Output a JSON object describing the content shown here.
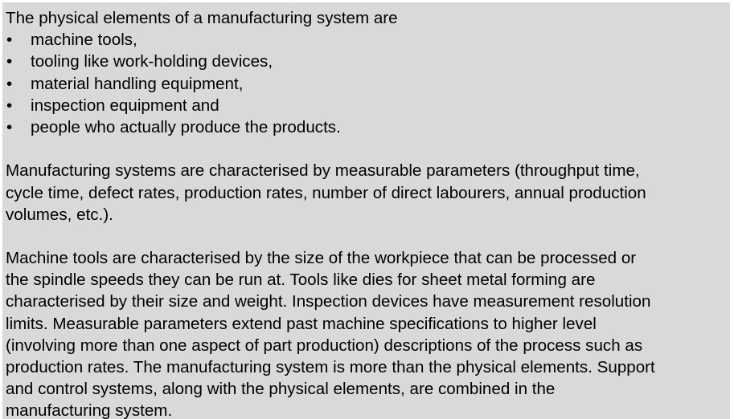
{
  "document": {
    "intro": "The physical elements of a manufacturing system are",
    "bullet_glyph": "•",
    "bullets": [
      "machine tools,",
      "tooling like work-holding devices,",
      "material handling equipment,",
      "inspection equipment and",
      "people who actually produce the products."
    ],
    "paragraph1_lines": [
      "Manufacturing systems are characterised by measurable parameters (throughput time,",
      "cycle time, defect rates, production rates, number of direct labourers, annual production",
      "volumes, etc.)."
    ],
    "paragraph2_lines": [
      "Machine tools are characterised by the size of the workpiece that can be processed or",
      "the spindle speeds they can be run at. Tools like dies for sheet metal forming are",
      "characterised by their size and weight.  Inspection devices have measurement resolution",
      "limits.  Measurable parameters extend past machine specifications to higher level",
      "(involving more than one aspect of part production) descriptions of the process such as",
      "production rates. The manufacturing system is more than the physical elements. Support",
      "and control systems, along with the physical elements, are combined in the",
      "manufacturing system."
    ]
  },
  "colors": {
    "page_background": "#d9d9d9",
    "text": "#000000"
  }
}
